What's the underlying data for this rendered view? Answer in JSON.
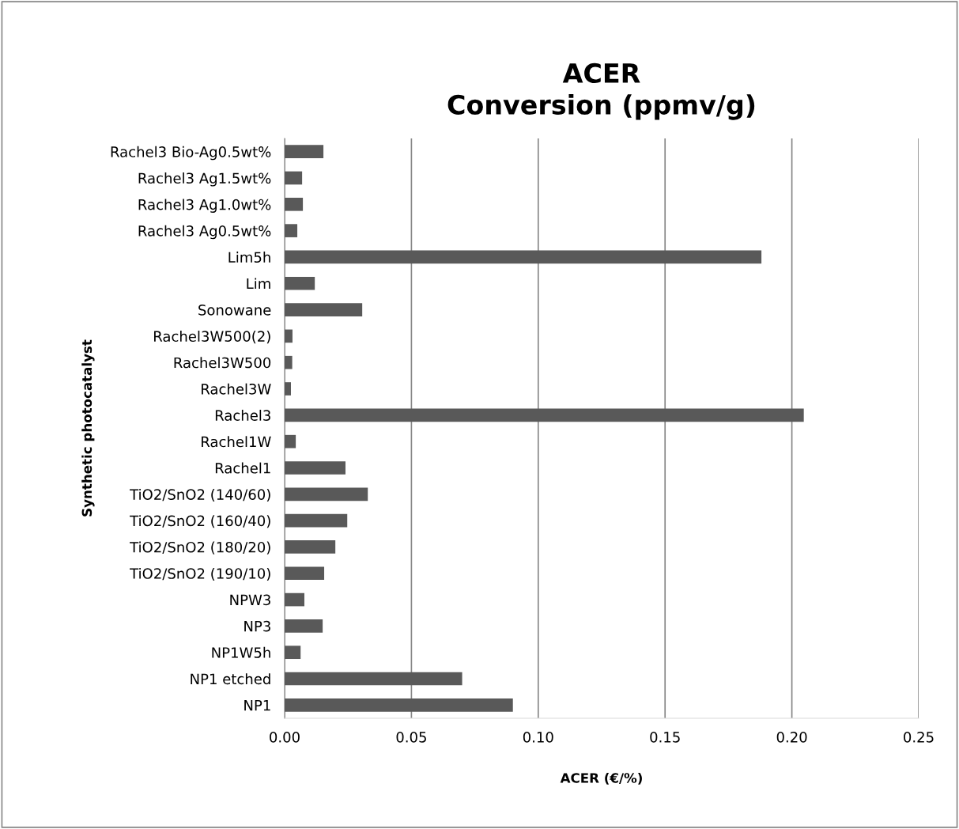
{
  "chart_data": {
    "type": "bar",
    "orientation": "horizontal",
    "title": "ACER\nConversion (ppmv/g)",
    "xlabel": "ACER (€/%)",
    "ylabel": "Synthetic photocatalyst",
    "categories": [
      "Rachel3 Bio-Ag0.5wt%",
      "Rachel3 Ag1.5wt%",
      "Rachel3 Ag1.0wt%",
      "Rachel3 Ag0.5wt%",
      "Lim5h",
      "Lim",
      "Sonowane",
      "Rachel3W500(2)",
      "Rachel3W500",
      "Rachel3W",
      "Rachel3",
      "Rachel1W",
      "Rachel1",
      "TiO2/SnO2 (140/60)",
      "TiO2/SnO2 (160/40)",
      "TiO2/SnO2 (180/20)",
      "TiO2/SnO2 (190/10)",
      "NPW3",
      "NP3",
      "NP1W5h",
      "NP1 etched",
      "NP1"
    ],
    "values": [
      0.0153,
      0.0069,
      0.0072,
      0.005,
      0.188,
      0.0119,
      0.0306,
      0.0031,
      0.003,
      0.0025,
      0.2047,
      0.0044,
      0.024,
      0.0328,
      0.0247,
      0.02,
      0.0156,
      0.0078,
      0.015,
      0.0063,
      0.07,
      0.09
    ],
    "color": "#595959",
    "xlim": [
      0,
      0.25
    ],
    "xticks": [
      {
        "value": 0,
        "label": "0.00"
      },
      {
        "value": 0.05,
        "label": "0.05"
      },
      {
        "value": 0.1,
        "label": "0.10"
      },
      {
        "value": 0.15,
        "label": "0.15"
      },
      {
        "value": 0.2,
        "label": "0.20"
      },
      {
        "value": 0.25,
        "label": "0.25"
      }
    ],
    "grid": "x"
  }
}
